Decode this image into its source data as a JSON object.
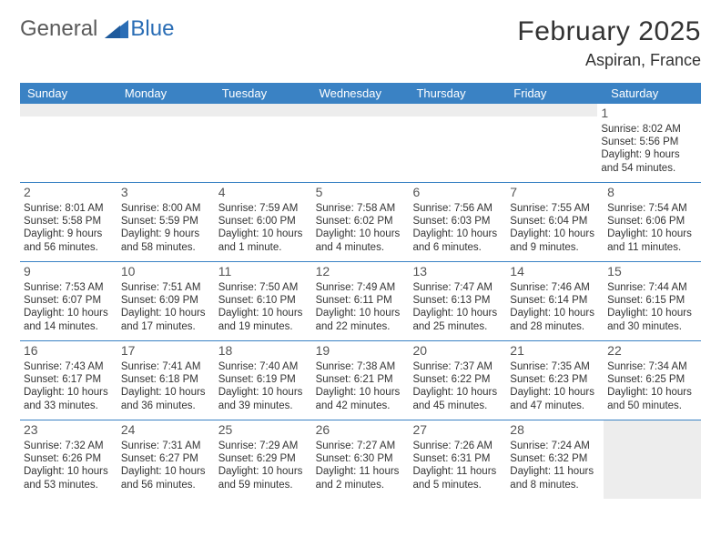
{
  "logo": {
    "general": "General",
    "blue": "Blue"
  },
  "title": "February 2025",
  "location": "Aspiran, France",
  "colors": {
    "header_bg": "#3a82c4",
    "header_text": "#ffffff",
    "divider": "#3a82c4",
    "text": "#333333",
    "logo_gray": "#5a5a5a",
    "logo_blue": "#2a6db5",
    "empty_bg": "#ededed"
  },
  "daysOfWeek": [
    "Sunday",
    "Monday",
    "Tuesday",
    "Wednesday",
    "Thursday",
    "Friday",
    "Saturday"
  ],
  "startOffset": 6,
  "daysInMonth": 28,
  "days": {
    "1": {
      "sunrise": "8:02 AM",
      "sunset": "5:56 PM",
      "daylight": "9 hours and 54 minutes."
    },
    "2": {
      "sunrise": "8:01 AM",
      "sunset": "5:58 PM",
      "daylight": "9 hours and 56 minutes."
    },
    "3": {
      "sunrise": "8:00 AM",
      "sunset": "5:59 PM",
      "daylight": "9 hours and 58 minutes."
    },
    "4": {
      "sunrise": "7:59 AM",
      "sunset": "6:00 PM",
      "daylight": "10 hours and 1 minute."
    },
    "5": {
      "sunrise": "7:58 AM",
      "sunset": "6:02 PM",
      "daylight": "10 hours and 4 minutes."
    },
    "6": {
      "sunrise": "7:56 AM",
      "sunset": "6:03 PM",
      "daylight": "10 hours and 6 minutes."
    },
    "7": {
      "sunrise": "7:55 AM",
      "sunset": "6:04 PM",
      "daylight": "10 hours and 9 minutes."
    },
    "8": {
      "sunrise": "7:54 AM",
      "sunset": "6:06 PM",
      "daylight": "10 hours and 11 minutes."
    },
    "9": {
      "sunrise": "7:53 AM",
      "sunset": "6:07 PM",
      "daylight": "10 hours and 14 minutes."
    },
    "10": {
      "sunrise": "7:51 AM",
      "sunset": "6:09 PM",
      "daylight": "10 hours and 17 minutes."
    },
    "11": {
      "sunrise": "7:50 AM",
      "sunset": "6:10 PM",
      "daylight": "10 hours and 19 minutes."
    },
    "12": {
      "sunrise": "7:49 AM",
      "sunset": "6:11 PM",
      "daylight": "10 hours and 22 minutes."
    },
    "13": {
      "sunrise": "7:47 AM",
      "sunset": "6:13 PM",
      "daylight": "10 hours and 25 minutes."
    },
    "14": {
      "sunrise": "7:46 AM",
      "sunset": "6:14 PM",
      "daylight": "10 hours and 28 minutes."
    },
    "15": {
      "sunrise": "7:44 AM",
      "sunset": "6:15 PM",
      "daylight": "10 hours and 30 minutes."
    },
    "16": {
      "sunrise": "7:43 AM",
      "sunset": "6:17 PM",
      "daylight": "10 hours and 33 minutes."
    },
    "17": {
      "sunrise": "7:41 AM",
      "sunset": "6:18 PM",
      "daylight": "10 hours and 36 minutes."
    },
    "18": {
      "sunrise": "7:40 AM",
      "sunset": "6:19 PM",
      "daylight": "10 hours and 39 minutes."
    },
    "19": {
      "sunrise": "7:38 AM",
      "sunset": "6:21 PM",
      "daylight": "10 hours and 42 minutes."
    },
    "20": {
      "sunrise": "7:37 AM",
      "sunset": "6:22 PM",
      "daylight": "10 hours and 45 minutes."
    },
    "21": {
      "sunrise": "7:35 AM",
      "sunset": "6:23 PM",
      "daylight": "10 hours and 47 minutes."
    },
    "22": {
      "sunrise": "7:34 AM",
      "sunset": "6:25 PM",
      "daylight": "10 hours and 50 minutes."
    },
    "23": {
      "sunrise": "7:32 AM",
      "sunset": "6:26 PM",
      "daylight": "10 hours and 53 minutes."
    },
    "24": {
      "sunrise": "7:31 AM",
      "sunset": "6:27 PM",
      "daylight": "10 hours and 56 minutes."
    },
    "25": {
      "sunrise": "7:29 AM",
      "sunset": "6:29 PM",
      "daylight": "10 hours and 59 minutes."
    },
    "26": {
      "sunrise": "7:27 AM",
      "sunset": "6:30 PM",
      "daylight": "11 hours and 2 minutes."
    },
    "27": {
      "sunrise": "7:26 AM",
      "sunset": "6:31 PM",
      "daylight": "11 hours and 5 minutes."
    },
    "28": {
      "sunrise": "7:24 AM",
      "sunset": "6:32 PM",
      "daylight": "11 hours and 8 minutes."
    }
  }
}
